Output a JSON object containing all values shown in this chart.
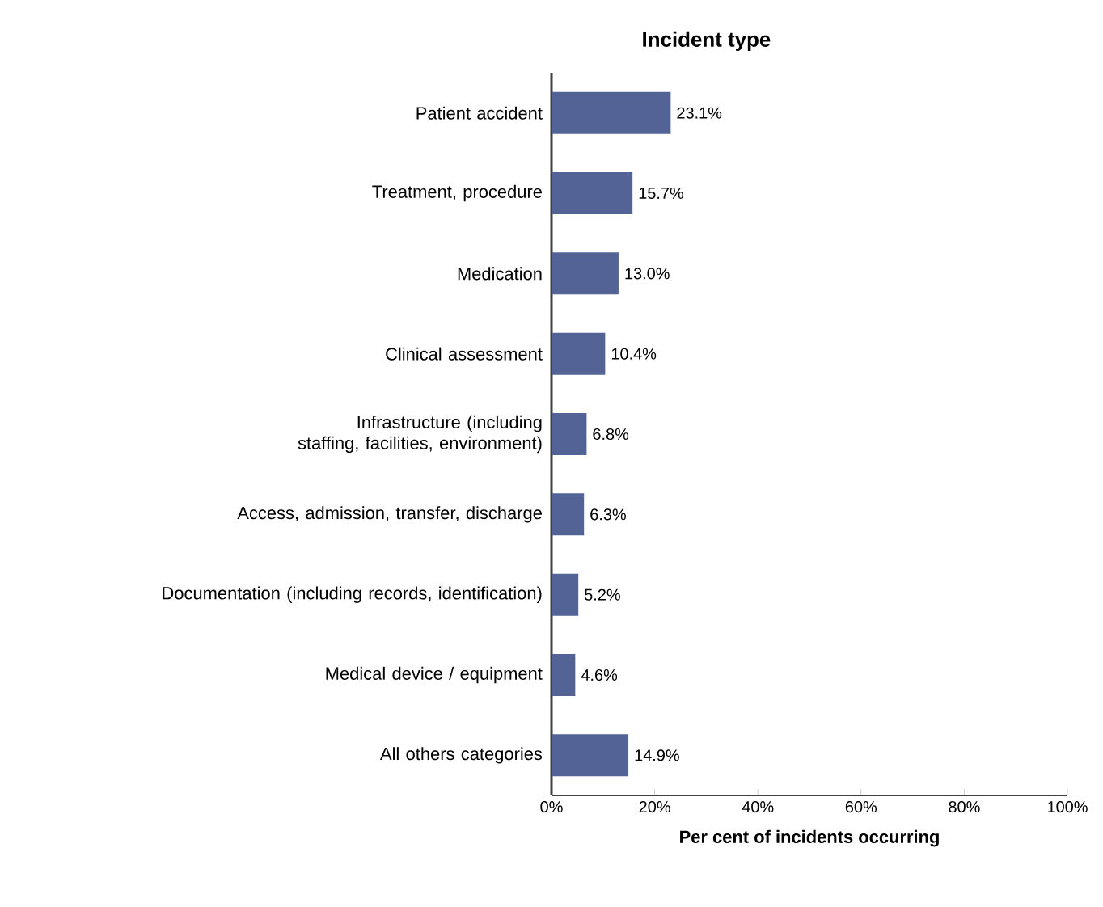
{
  "chart_data": {
    "type": "bar",
    "orientation": "horizontal",
    "title": "Incident type",
    "xlabel": "Per cent of incidents occurring",
    "categories": [
      "Patient accident",
      "Treatment, procedure",
      "Medication",
      "Clinical assessment",
      "Infrastructure (including staffing, facilities, environment)",
      "Access, admission, transfer, discharge",
      "Documentation (including records, identification)",
      "Medical device / equipment",
      "All others categories"
    ],
    "values": [
      23.1,
      15.7,
      13.0,
      10.4,
      6.8,
      6.3,
      5.2,
      4.6,
      14.9
    ],
    "value_labels": [
      "23.1%",
      "15.7%",
      "13.0%",
      "10.4%",
      "6.8%",
      "6.3%",
      "5.2%",
      "4.6%",
      "14.9%"
    ],
    "color": "#536395",
    "xlim": [
      0,
      100
    ],
    "xticks": [
      {
        "value": 0,
        "label": "0%"
      },
      {
        "value": 20,
        "label": "20%"
      },
      {
        "value": 40,
        "label": "40%"
      },
      {
        "value": 60,
        "label": "60%"
      },
      {
        "value": 80,
        "label": "80%"
      },
      {
        "value": 100,
        "label": "100%"
      }
    ],
    "grid": false
  }
}
